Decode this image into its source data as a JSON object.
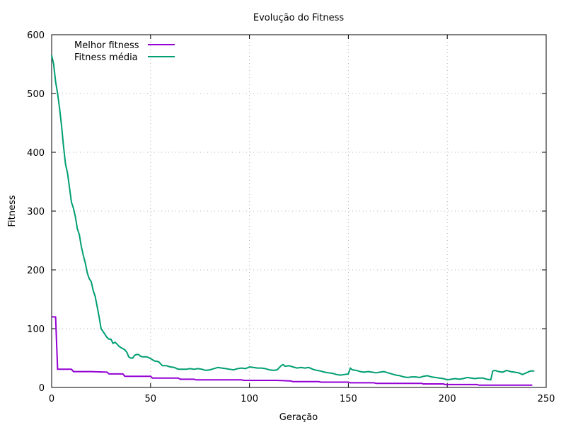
{
  "chart_data": {
    "type": "line",
    "title": "Evolução do Fitness",
    "xlabel": "Geração",
    "ylabel": "Fitness",
    "xlim": [
      0,
      250
    ],
    "ylim": [
      0,
      600
    ],
    "xticks": [
      0,
      50,
      100,
      150,
      200,
      250
    ],
    "yticks": [
      0,
      100,
      200,
      300,
      400,
      500,
      600
    ],
    "grid": true,
    "legend_position": "top-left",
    "series": [
      {
        "name": "Melhor fitness",
        "color": "#9400d3",
        "points": [
          [
            0,
            120
          ],
          [
            1,
            120
          ],
          [
            2,
            120
          ],
          [
            3,
            31
          ],
          [
            10,
            31
          ],
          [
            11,
            27
          ],
          [
            19,
            27
          ],
          [
            20,
            27
          ],
          [
            28,
            26
          ],
          [
            29,
            23
          ],
          [
            36,
            23
          ],
          [
            37,
            19
          ],
          [
            50,
            19
          ],
          [
            51,
            16
          ],
          [
            64,
            16
          ],
          [
            65,
            14
          ],
          [
            72,
            14
          ],
          [
            73,
            13
          ],
          [
            96,
            13
          ],
          [
            97,
            12
          ],
          [
            113,
            12
          ],
          [
            114,
            12
          ],
          [
            121,
            11
          ],
          [
            122,
            10
          ],
          [
            135,
            10
          ],
          [
            136,
            9
          ],
          [
            150,
            9
          ],
          [
            151,
            8
          ],
          [
            163,
            8
          ],
          [
            164,
            7
          ],
          [
            187,
            7
          ],
          [
            188,
            6
          ],
          [
            198,
            6
          ],
          [
            199,
            5
          ],
          [
            215,
            5
          ],
          [
            216,
            4
          ],
          [
            243,
            4
          ]
        ]
      },
      {
        "name": "Fitness média",
        "color": "#009e73",
        "points": [
          [
            0,
            565
          ],
          [
            1,
            550
          ],
          [
            2,
            520
          ],
          [
            3,
            500
          ],
          [
            4,
            475
          ],
          [
            5,
            445
          ],
          [
            6,
            410
          ],
          [
            7,
            380
          ],
          [
            8,
            365
          ],
          [
            9,
            340
          ],
          [
            10,
            315
          ],
          [
            11,
            305
          ],
          [
            12,
            290
          ],
          [
            13,
            270
          ],
          [
            14,
            260
          ],
          [
            15,
            240
          ],
          [
            16,
            225
          ],
          [
            17,
            212
          ],
          [
            18,
            195
          ],
          [
            19,
            185
          ],
          [
            20,
            180
          ],
          [
            21,
            165
          ],
          [
            22,
            155
          ],
          [
            23,
            138
          ],
          [
            24,
            120
          ],
          [
            25,
            100
          ],
          [
            26,
            95
          ],
          [
            27,
            90
          ],
          [
            28,
            85
          ],
          [
            29,
            82
          ],
          [
            30,
            82
          ],
          [
            31,
            75
          ],
          [
            32,
            77
          ],
          [
            33,
            74
          ],
          [
            34,
            70
          ],
          [
            35,
            68
          ],
          [
            36,
            66
          ],
          [
            37,
            64
          ],
          [
            38,
            60
          ],
          [
            39,
            52
          ],
          [
            40,
            50
          ],
          [
            41,
            50
          ],
          [
            42,
            55
          ],
          [
            43,
            56
          ],
          [
            44,
            56
          ],
          [
            45,
            53
          ],
          [
            46,
            52
          ],
          [
            47,
            52
          ],
          [
            48,
            52
          ],
          [
            49,
            51
          ],
          [
            50,
            49
          ],
          [
            52,
            45
          ],
          [
            54,
            44
          ],
          [
            56,
            37
          ],
          [
            58,
            37
          ],
          [
            60,
            35
          ],
          [
            62,
            34
          ],
          [
            64,
            31
          ],
          [
            66,
            31
          ],
          [
            68,
            31
          ],
          [
            70,
            32
          ],
          [
            72,
            31
          ],
          [
            74,
            32
          ],
          [
            76,
            31
          ],
          [
            78,
            29
          ],
          [
            80,
            30
          ],
          [
            82,
            32
          ],
          [
            84,
            34
          ],
          [
            86,
            33
          ],
          [
            88,
            32
          ],
          [
            90,
            31
          ],
          [
            92,
            30
          ],
          [
            94,
            32
          ],
          [
            96,
            33
          ],
          [
            98,
            32
          ],
          [
            100,
            35
          ],
          [
            102,
            34
          ],
          [
            104,
            33
          ],
          [
            106,
            33
          ],
          [
            108,
            32
          ],
          [
            110,
            30
          ],
          [
            112,
            29
          ],
          [
            114,
            30
          ],
          [
            116,
            37
          ],
          [
            117,
            39
          ],
          [
            118,
            36
          ],
          [
            120,
            37
          ],
          [
            122,
            35
          ],
          [
            124,
            33
          ],
          [
            126,
            34
          ],
          [
            128,
            33
          ],
          [
            130,
            34
          ],
          [
            132,
            31
          ],
          [
            134,
            29
          ],
          [
            136,
            28
          ],
          [
            138,
            26
          ],
          [
            140,
            25
          ],
          [
            142,
            24
          ],
          [
            144,
            22
          ],
          [
            146,
            21
          ],
          [
            148,
            22
          ],
          [
            150,
            23
          ],
          [
            151,
            33
          ],
          [
            152,
            30
          ],
          [
            154,
            29
          ],
          [
            156,
            27
          ],
          [
            158,
            26
          ],
          [
            160,
            27
          ],
          [
            162,
            26
          ],
          [
            164,
            25
          ],
          [
            166,
            26
          ],
          [
            168,
            27
          ],
          [
            170,
            25
          ],
          [
            172,
            23
          ],
          [
            174,
            21
          ],
          [
            176,
            20
          ],
          [
            178,
            18
          ],
          [
            180,
            17
          ],
          [
            182,
            18
          ],
          [
            184,
            18
          ],
          [
            186,
            17
          ],
          [
            188,
            19
          ],
          [
            190,
            20
          ],
          [
            192,
            18
          ],
          [
            194,
            17
          ],
          [
            196,
            16
          ],
          [
            198,
            15
          ],
          [
            200,
            13
          ],
          [
            202,
            14
          ],
          [
            204,
            15
          ],
          [
            206,
            14
          ],
          [
            208,
            15
          ],
          [
            210,
            17
          ],
          [
            212,
            16
          ],
          [
            214,
            15
          ],
          [
            216,
            16
          ],
          [
            218,
            16
          ],
          [
            220,
            14
          ],
          [
            222,
            13
          ],
          [
            223,
            28
          ],
          [
            224,
            29
          ],
          [
            226,
            27
          ],
          [
            228,
            26
          ],
          [
            230,
            29
          ],
          [
            232,
            27
          ],
          [
            234,
            26
          ],
          [
            236,
            25
          ],
          [
            238,
            22
          ],
          [
            240,
            25
          ],
          [
            242,
            28
          ],
          [
            244,
            28
          ]
        ]
      }
    ]
  }
}
